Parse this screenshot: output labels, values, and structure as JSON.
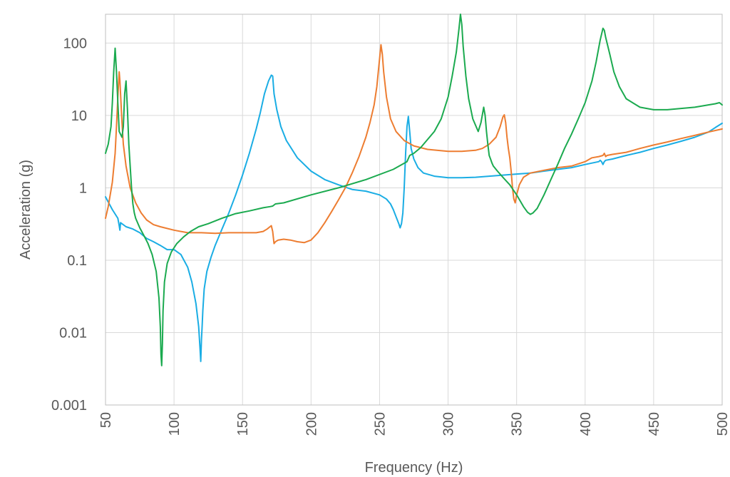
{
  "chart_data": {
    "type": "line",
    "title": "",
    "xlabel": "Frequency (Hz)",
    "ylabel": "Acceleration (g)",
    "xlim": [
      50,
      500
    ],
    "ylim": [
      0.001,
      250
    ],
    "yscale": "log",
    "grid": true,
    "legend": "none",
    "x_ticks": [
      "50",
      "100",
      "150",
      "200",
      "250",
      "300",
      "350",
      "400",
      "450",
      "500"
    ],
    "y_ticks": [
      "0.001",
      "0.01",
      "0.1",
      "1",
      "10",
      "100"
    ],
    "y_tick_values": [
      0.001,
      0.01,
      0.1,
      1,
      10,
      100
    ],
    "series": [
      {
        "color": "#1AADE4",
        "x": [
          50,
          55,
          59,
          60,
          60.5,
          61,
          65,
          70,
          75,
          80,
          85,
          90,
          95,
          100,
          105,
          110,
          113,
          116,
          118,
          119,
          119.5,
          120,
          120.5,
          121,
          122,
          124,
          127,
          130,
          135,
          140,
          145,
          150,
          155,
          160,
          163,
          166,
          169,
          171,
          172,
          173,
          175,
          178,
          182,
          190,
          200,
          210,
          220,
          230,
          240,
          250,
          255,
          258,
          260,
          262,
          264,
          265,
          266,
          267,
          268,
          269,
          270,
          271,
          272,
          273,
          275,
          278,
          282,
          290,
          300,
          310,
          320,
          330,
          340,
          350,
          360,
          370,
          380,
          390,
          400,
          405,
          410,
          411,
          412,
          413,
          414,
          415,
          420,
          430,
          440,
          450,
          460,
          470,
          480,
          490,
          495,
          500
        ],
        "y": [
          0.75,
          0.5,
          0.38,
          0.3,
          0.26,
          0.33,
          0.29,
          0.27,
          0.24,
          0.2,
          0.18,
          0.16,
          0.14,
          0.14,
          0.12,
          0.08,
          0.05,
          0.025,
          0.012,
          0.006,
          0.004,
          0.008,
          0.012,
          0.02,
          0.04,
          0.07,
          0.11,
          0.16,
          0.27,
          0.45,
          0.8,
          1.5,
          3,
          6.5,
          11,
          20,
          30,
          36,
          35,
          20,
          12,
          7,
          4.5,
          2.6,
          1.7,
          1.3,
          1.1,
          0.95,
          0.9,
          0.8,
          0.7,
          0.6,
          0.5,
          0.4,
          0.32,
          0.28,
          0.32,
          0.45,
          1,
          3,
          7,
          9.7,
          6,
          3.5,
          2.5,
          1.9,
          1.6,
          1.45,
          1.38,
          1.38,
          1.4,
          1.45,
          1.5,
          1.55,
          1.6,
          1.7,
          1.8,
          1.9,
          2.1,
          2.2,
          2.3,
          2.4,
          2.3,
          2.1,
          2.3,
          2.4,
          2.5,
          2.8,
          3.1,
          3.5,
          3.9,
          4.4,
          5,
          5.9,
          6.8,
          7.8
        ]
      },
      {
        "color": "#ED7D31",
        "x": [
          50,
          52,
          55,
          57,
          58,
          59,
          60,
          60.5,
          61,
          62,
          63,
          65,
          68,
          72,
          76,
          80,
          85,
          90,
          100,
          110,
          120,
          130,
          140,
          150,
          160,
          165,
          168,
          170,
          171,
          172,
          173,
          174,
          176,
          180,
          185,
          190,
          195,
          200,
          205,
          210,
          215,
          220,
          225,
          230,
          235,
          240,
          243,
          246,
          248,
          250,
          251,
          252,
          253,
          255,
          258,
          262,
          268,
          275,
          285,
          300,
          310,
          320,
          325,
          330,
          335,
          338,
          340,
          341,
          342,
          343,
          344,
          345,
          346,
          347,
          348,
          349,
          350,
          352,
          355,
          360,
          370,
          380,
          390,
          400,
          405,
          410,
          413,
          414,
          415,
          416,
          420,
          430,
          440,
          450,
          460,
          470,
          480,
          490,
          500
        ],
        "y": [
          0.38,
          0.55,
          1.2,
          3,
          7,
          18,
          40,
          30,
          20,
          8,
          4,
          2,
          1,
          0.62,
          0.45,
          0.36,
          0.31,
          0.29,
          0.26,
          0.24,
          0.24,
          0.235,
          0.24,
          0.24,
          0.24,
          0.25,
          0.27,
          0.29,
          0.3,
          0.25,
          0.17,
          0.18,
          0.19,
          0.195,
          0.19,
          0.18,
          0.175,
          0.19,
          0.24,
          0.33,
          0.47,
          0.68,
          1,
          1.6,
          2.7,
          5,
          8,
          14,
          25,
          60,
          95,
          70,
          40,
          18,
          9,
          6,
          4.5,
          3.8,
          3.4,
          3.2,
          3.2,
          3.3,
          3.5,
          4,
          5,
          7,
          9.5,
          10.2,
          8,
          5,
          3.5,
          2.6,
          1.7,
          1,
          0.7,
          0.62,
          0.8,
          1.1,
          1.4,
          1.6,
          1.75,
          1.9,
          2,
          2.3,
          2.6,
          2.7,
          2.8,
          3,
          2.7,
          2.8,
          2.9,
          3.1,
          3.5,
          3.9,
          4.3,
          4.8,
          5.3,
          5.9,
          6.5
        ]
      },
      {
        "color": "#1BAA4F",
        "x": [
          50,
          52,
          54,
          55,
          56,
          57,
          58,
          59,
          60,
          62,
          63,
          64,
          65,
          66,
          67,
          68,
          69,
          70,
          71,
          72,
          75,
          78,
          81,
          84,
          87,
          89,
          90,
          90.5,
          91,
          91.5,
          92,
          93,
          95,
          98,
          102,
          107,
          112,
          118,
          125,
          135,
          145,
          155,
          165,
          170,
          172,
          174,
          180,
          200,
          220,
          240,
          260,
          270,
          272,
          275,
          280,
          290,
          295,
          300,
          303,
          306,
          308,
          309,
          310,
          311,
          313,
          315,
          318,
          322,
          324,
          326,
          327,
          328,
          329,
          330,
          331,
          332,
          333,
          336,
          340,
          345,
          350,
          355,
          358,
          360,
          362,
          365,
          370,
          375,
          380,
          385,
          390,
          395,
          400,
          405,
          408,
          411,
          413,
          414,
          415,
          418,
          421,
          425,
          430,
          440,
          450,
          460,
          470,
          480,
          490,
          495,
          498,
          500
        ],
        "y": [
          3,
          4,
          7,
          15,
          40,
          85,
          40,
          15,
          6,
          5,
          7,
          20,
          30,
          12,
          4,
          2,
          1,
          0.6,
          0.45,
          0.38,
          0.28,
          0.22,
          0.17,
          0.12,
          0.07,
          0.03,
          0.012,
          0.005,
          0.0035,
          0.007,
          0.02,
          0.05,
          0.09,
          0.13,
          0.17,
          0.21,
          0.25,
          0.29,
          0.32,
          0.38,
          0.44,
          0.48,
          0.53,
          0.55,
          0.56,
          0.6,
          0.62,
          0.8,
          1,
          1.3,
          1.8,
          2.3,
          2.8,
          3,
          3.6,
          6,
          9,
          18,
          35,
          75,
          160,
          250,
          180,
          90,
          35,
          17,
          9,
          6,
          8,
          13,
          10,
          6,
          4,
          2.8,
          2.5,
          2.2,
          2,
          1.7,
          1.4,
          1.1,
          0.8,
          0.55,
          0.46,
          0.43,
          0.45,
          0.52,
          0.8,
          1.3,
          2.1,
          3.5,
          5.5,
          9,
          15,
          30,
          55,
          110,
          160,
          150,
          120,
          70,
          40,
          25,
          17,
          13,
          12,
          12,
          12.5,
          13,
          14,
          14.5,
          15,
          14
        ]
      }
    ]
  }
}
